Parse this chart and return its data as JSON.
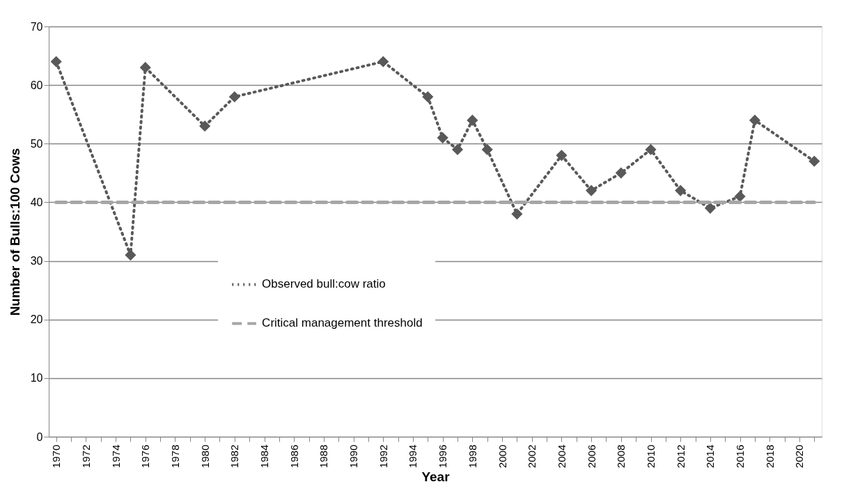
{
  "chart_data": {
    "type": "line",
    "xlabel": "Year",
    "ylabel": "Number of Bulls:100 Cows",
    "xlim": [
      1969.5,
      2021.5
    ],
    "xticks": [
      1970,
      {
        "value": 1971,
        "label": null
      },
      1972,
      {
        "value": 1973,
        "label": null
      },
      1974,
      {
        "value": 1975,
        "label": null
      },
      1976,
      {
        "value": 1977,
        "label": null
      },
      1978,
      {
        "value": 1979,
        "label": null
      },
      1980,
      {
        "value": 1981,
        "label": null
      },
      1982,
      {
        "value": 1983,
        "label": null
      },
      1984,
      {
        "value": 1985,
        "label": null
      },
      1986,
      {
        "value": 1987,
        "label": null
      },
      1988,
      {
        "value": 1989,
        "label": null
      },
      1990,
      {
        "value": 1991,
        "label": null
      },
      1992,
      {
        "value": 1993,
        "label": null
      },
      1994,
      {
        "value": 1995,
        "label": null
      },
      1996,
      {
        "value": 1997,
        "label": null
      },
      1998,
      {
        "value": 1999,
        "label": null
      },
      2000,
      {
        "value": 2001,
        "label": null
      },
      2002,
      {
        "value": 2003,
        "label": null
      },
      2004,
      {
        "value": 2005,
        "label": null
      },
      2006,
      {
        "value": 2007,
        "label": null
      },
      2008,
      {
        "value": 2009,
        "label": null
      },
      2010,
      {
        "value": 2011,
        "label": null
      },
      2012,
      {
        "value": 2013,
        "label": null
      },
      2014,
      {
        "value": 2015,
        "label": null
      },
      2016,
      {
        "value": 2017,
        "label": null
      },
      2018,
      {
        "value": 2019,
        "label": null
      },
      2020,
      {
        "value": 2021,
        "label": null
      }
    ],
    "ylim": [
      0,
      70
    ],
    "yticks": [
      0,
      10,
      20,
      30,
      40,
      50,
      60,
      70
    ],
    "grid": "y",
    "legend": "bottom",
    "series": [
      {
        "name": "Observed bull:cow ratio",
        "color": "#595959",
        "line_style": "dotted",
        "marker": "diamond",
        "x": [
          1970,
          1975,
          1976,
          1980,
          1982,
          1992,
          1995,
          1996,
          1997,
          1998,
          1999,
          2001,
          2004,
          2006,
          2008,
          2010,
          2012,
          2014,
          2016,
          2017,
          2021
        ],
        "values": [
          64,
          31,
          63,
          53,
          58,
          64,
          58,
          51,
          49,
          54,
          49,
          38,
          48,
          42,
          45,
          49,
          42,
          39,
          41,
          54,
          47
        ]
      },
      {
        "name": "Critical management threshold",
        "color": "#a6a6a6",
        "line_style": "dashed",
        "marker": "none",
        "x": [
          1970,
          2021
        ],
        "values": [
          40,
          40
        ]
      }
    ]
  }
}
